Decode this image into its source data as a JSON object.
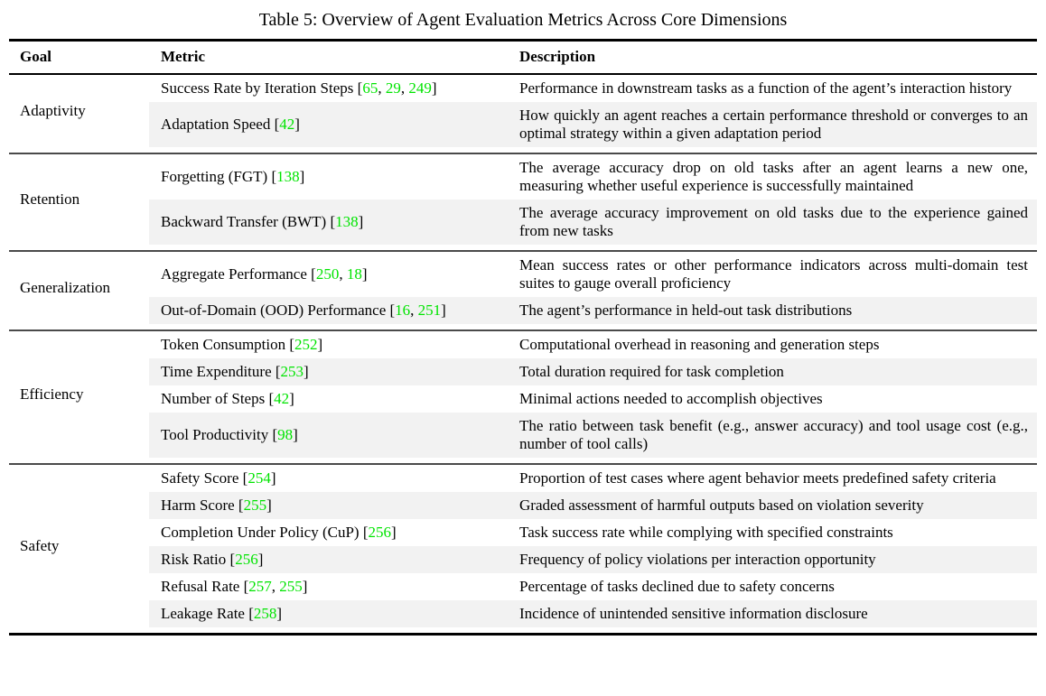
{
  "caption": "Table 5: Overview of Agent Evaluation Metrics Across Core Dimensions",
  "table": {
    "columns": [
      "Goal",
      "Metric",
      "Description"
    ],
    "citation_color": "#00e400",
    "shade_color": "#f2f2f2",
    "groups": [
      {
        "goal": "Adaptivity",
        "rows": [
          {
            "metric": "Success Rate by Iteration Steps",
            "citations": [
              "65",
              "29",
              "249"
            ],
            "description": "Performance in downstream tasks as a function of the agent’s interaction history"
          },
          {
            "metric": "Adaptation Speed",
            "citations": [
              "42"
            ],
            "description": "How quickly an agent reaches a certain performance threshold or converges to an optimal strategy within a given adaptation period"
          }
        ]
      },
      {
        "goal": "Retention",
        "rows": [
          {
            "metric": "Forgetting (FGT)",
            "citations": [
              "138"
            ],
            "description": "The average accuracy drop on old tasks after an agent learns a new one, measuring whether useful experience is successfully maintained"
          },
          {
            "metric": "Backward Transfer (BWT)",
            "citations": [
              "138"
            ],
            "description": "The average accuracy improvement on old tasks due to the experience gained from new tasks"
          }
        ]
      },
      {
        "goal": "Generalization",
        "rows": [
          {
            "metric": "Aggregate Performance",
            "citations": [
              "250",
              "18"
            ],
            "description": "Mean success rates or other performance indicators across multi-domain test suites to gauge overall proficiency"
          },
          {
            "metric": "Out-of-Domain (OOD) Performance",
            "citations": [
              "16",
              "251"
            ],
            "description": "The agent’s performance in held-out task distributions"
          }
        ]
      },
      {
        "goal": "Efficiency",
        "rows": [
          {
            "metric": "Token Consumption",
            "citations": [
              "252"
            ],
            "description": "Computational overhead in reasoning and generation steps"
          },
          {
            "metric": "Time Expenditure",
            "citations": [
              "253"
            ],
            "description": "Total duration required for task completion"
          },
          {
            "metric": "Number of Steps",
            "citations": [
              "42"
            ],
            "description": "Minimal actions needed to accomplish objectives"
          },
          {
            "metric": "Tool Productivity",
            "citations": [
              "98"
            ],
            "description": "The ratio between task benefit (e.g., answer accuracy) and tool usage cost (e.g., number of tool calls)"
          }
        ]
      },
      {
        "goal": "Safety",
        "rows": [
          {
            "metric": "Safety Score",
            "citations": [
              "254"
            ],
            "description": "Proportion of test cases where agent behavior meets predefined safety criteria"
          },
          {
            "metric": "Harm Score",
            "citations": [
              "255"
            ],
            "description": "Graded assessment of harmful outputs based on violation severity"
          },
          {
            "metric": "Completion Under Policy (CuP)",
            "citations": [
              "256"
            ],
            "description": "Task success rate while complying with specified constraints"
          },
          {
            "metric": "Risk Ratio",
            "citations": [
              "256"
            ],
            "description": "Frequency of policy violations per interaction opportunity"
          },
          {
            "metric": "Refusal Rate",
            "citations": [
              "257",
              "255"
            ],
            "description": "Percentage of tasks declined due to safety concerns"
          },
          {
            "metric": "Leakage Rate",
            "citations": [
              "258"
            ],
            "description": "Incidence of unintended sensitive information disclosure"
          }
        ]
      }
    ]
  }
}
